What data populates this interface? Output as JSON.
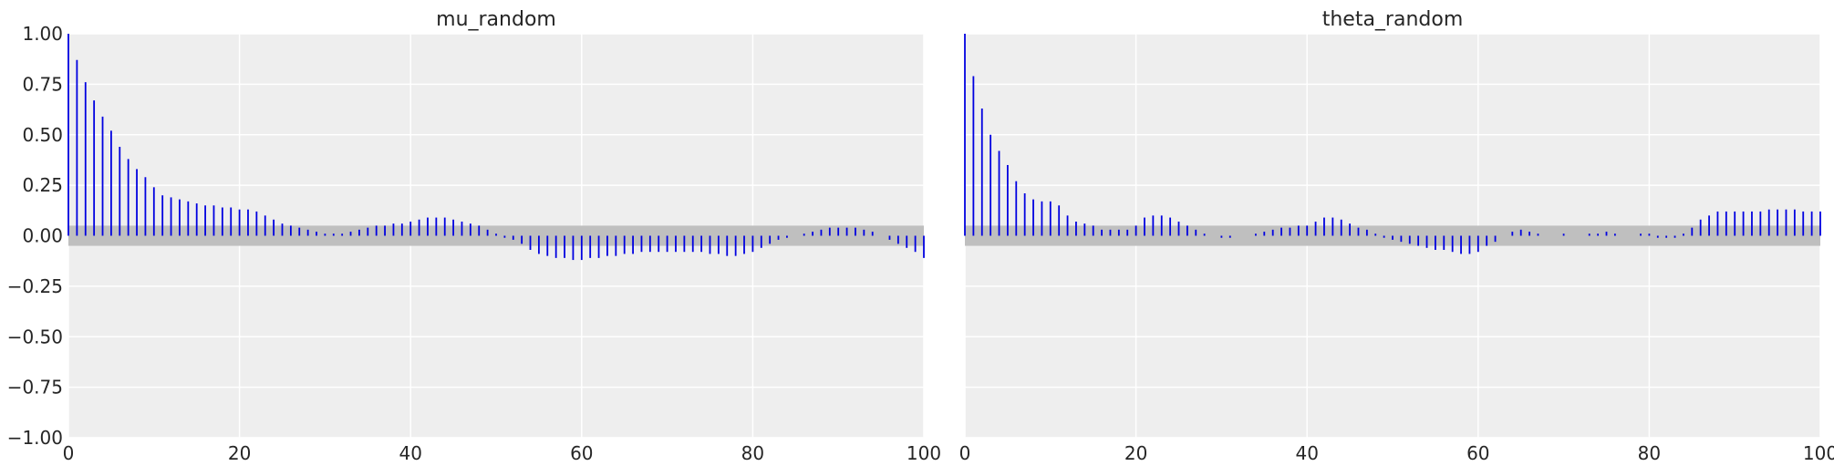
{
  "chart_data": [
    {
      "type": "bar",
      "title": "mu_random",
      "xlabel": "",
      "ylabel": "",
      "xlim": [
        0,
        100
      ],
      "ylim": [
        -1.0,
        1.0
      ],
      "xticks": [
        "0",
        "20",
        "40",
        "60",
        "80",
        "100"
      ],
      "yticks": [
        "1.00",
        "0.75",
        "0.50",
        "0.25",
        "0.00",
        "−0.25",
        "−0.50",
        "−0.75",
        "−1.00"
      ],
      "grid": true,
      "band": [
        -0.05,
        0.05
      ],
      "values": [
        1.0,
        0.87,
        0.76,
        0.67,
        0.59,
        0.52,
        0.44,
        0.38,
        0.33,
        0.29,
        0.24,
        0.2,
        0.19,
        0.18,
        0.17,
        0.16,
        0.15,
        0.15,
        0.14,
        0.14,
        0.13,
        0.13,
        0.12,
        0.1,
        0.08,
        0.06,
        0.05,
        0.04,
        0.03,
        0.02,
        0.01,
        0.01,
        0.01,
        0.02,
        0.03,
        0.04,
        0.05,
        0.05,
        0.06,
        0.06,
        0.07,
        0.08,
        0.09,
        0.09,
        0.09,
        0.08,
        0.07,
        0.06,
        0.05,
        0.03,
        0.01,
        -0.01,
        -0.02,
        -0.04,
        -0.07,
        -0.09,
        -0.1,
        -0.11,
        -0.11,
        -0.12,
        -0.12,
        -0.11,
        -0.11,
        -0.1,
        -0.1,
        -0.09,
        -0.09,
        -0.08,
        -0.08,
        -0.08,
        -0.08,
        -0.08,
        -0.08,
        -0.08,
        -0.08,
        -0.09,
        -0.09,
        -0.1,
        -0.1,
        -0.09,
        -0.08,
        -0.06,
        -0.04,
        -0.02,
        -0.01,
        0.0,
        0.01,
        0.02,
        0.03,
        0.04,
        0.04,
        0.04,
        0.04,
        0.03,
        0.02,
        0.0,
        -0.02,
        -0.04,
        -0.06,
        -0.08,
        -0.11
      ]
    },
    {
      "type": "bar",
      "title": "theta_random",
      "xlabel": "",
      "ylabel": "",
      "xlim": [
        0,
        100
      ],
      "ylim": [
        -1.0,
        1.0
      ],
      "xticks": [
        "0",
        "20",
        "40",
        "60",
        "80",
        "100"
      ],
      "yticks": [],
      "grid": true,
      "band": [
        -0.05,
        0.05
      ],
      "values": [
        1.0,
        0.79,
        0.63,
        0.5,
        0.42,
        0.35,
        0.27,
        0.21,
        0.18,
        0.17,
        0.17,
        0.15,
        0.1,
        0.07,
        0.06,
        0.05,
        0.03,
        0.03,
        0.03,
        0.03,
        0.05,
        0.09,
        0.1,
        0.1,
        0.09,
        0.07,
        0.05,
        0.03,
        0.01,
        0.0,
        -0.01,
        -0.01,
        0.0,
        0.0,
        0.01,
        0.02,
        0.03,
        0.04,
        0.04,
        0.05,
        0.05,
        0.07,
        0.09,
        0.09,
        0.08,
        0.06,
        0.04,
        0.03,
        0.01,
        -0.01,
        -0.02,
        -0.03,
        -0.04,
        -0.05,
        -0.06,
        -0.07,
        -0.07,
        -0.08,
        -0.09,
        -0.09,
        -0.08,
        -0.05,
        -0.03,
        0.0,
        0.02,
        0.03,
        0.02,
        0.01,
        0.0,
        0.0,
        0.01,
        0.0,
        0.0,
        0.01,
        0.01,
        0.02,
        0.01,
        0.0,
        0.0,
        0.01,
        0.01,
        -0.01,
        -0.01,
        -0.01,
        0.01,
        0.04,
        0.08,
        0.1,
        0.12,
        0.12,
        0.12,
        0.12,
        0.12,
        0.12,
        0.13,
        0.13,
        0.13,
        0.13,
        0.12,
        0.12,
        0.12
      ]
    }
  ]
}
